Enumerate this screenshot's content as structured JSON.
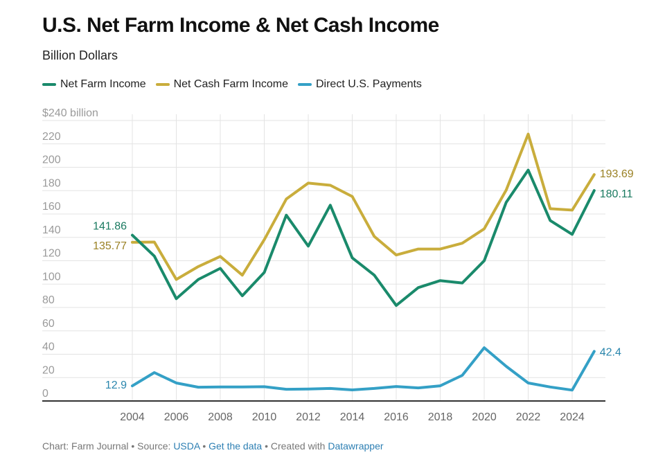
{
  "header": {
    "title": "U.S. Net Farm Income & Net Cash Income",
    "subtitle": "Billion Dollars"
  },
  "legend": [
    {
      "label": "Net Farm Income",
      "color": "#1a8a6b"
    },
    {
      "label": "Net Cash Farm Income",
      "color": "#c9ad3c"
    },
    {
      "label": "Direct U.S. Payments",
      "color": "#34a0c6"
    }
  ],
  "footer": {
    "chart_prefix": "Chart: Farm Journal",
    "sep1": " • ",
    "source_prefix": "Source: ",
    "source_link": "USDA",
    "sep2": " • ",
    "get_data_link": "Get the data",
    "sep3": " • ",
    "created_prefix": "Created with ",
    "datawrapper_link": "Datawrapper"
  },
  "chart_data": {
    "type": "line",
    "title": "U.S. Net Farm Income & Net Cash Income",
    "subtitle": "Billion Dollars",
    "xlabel": "",
    "ylabel": "",
    "ylim": [
      0,
      240
    ],
    "y_ticks": [
      "0",
      "20",
      "40",
      "60",
      "80",
      "100",
      "120",
      "140",
      "160",
      "180",
      "200",
      "220",
      "$240 billion"
    ],
    "x_ticks": [
      "2004",
      "2006",
      "2008",
      "2010",
      "2012",
      "2014",
      "2016",
      "2018",
      "2020",
      "2022",
      "2024"
    ],
    "grid": true,
    "legend_position": "top",
    "x": [
      2004,
      2005,
      2006,
      2007,
      2008,
      2009,
      2010,
      2011,
      2012,
      2013,
      2014,
      2015,
      2016,
      2017,
      2018,
      2019,
      2020,
      2021,
      2022,
      2023,
      2024,
      2025
    ],
    "series": [
      {
        "name": "Net Farm Income",
        "color": "#1a8a6b",
        "values": [
          141.86,
          124,
          87.5,
          104,
          113.5,
          90,
          110,
          159,
          132.5,
          167.5,
          122.5,
          107.7,
          81.7,
          97,
          103,
          101,
          120,
          170,
          197.6,
          154.4,
          142.6,
          180.11
        ],
        "start_label": "141.86",
        "end_label": "180.11"
      },
      {
        "name": "Net Cash Farm Income",
        "color": "#c9ad3c",
        "values": [
          135.77,
          136,
          104,
          115,
          123.7,
          107.7,
          138,
          172.8,
          186.4,
          184.6,
          175,
          140.8,
          124.9,
          130,
          130,
          135,
          147.3,
          180.5,
          228.4,
          164.5,
          163.3,
          193.69
        ],
        "start_label": "135.77",
        "end_label": "193.69"
      },
      {
        "name": "Direct U.S. Payments",
        "color": "#34a0c6",
        "values": [
          12.9,
          24.3,
          15.4,
          11.8,
          12,
          12,
          12.2,
          10,
          10.2,
          10.7,
          9.5,
          10.7,
          12.4,
          11.2,
          13,
          21.9,
          45.6,
          29.6,
          15.4,
          12,
          9.3,
          42.4
        ],
        "start_label": "12.9",
        "end_label": "42.4"
      }
    ]
  }
}
